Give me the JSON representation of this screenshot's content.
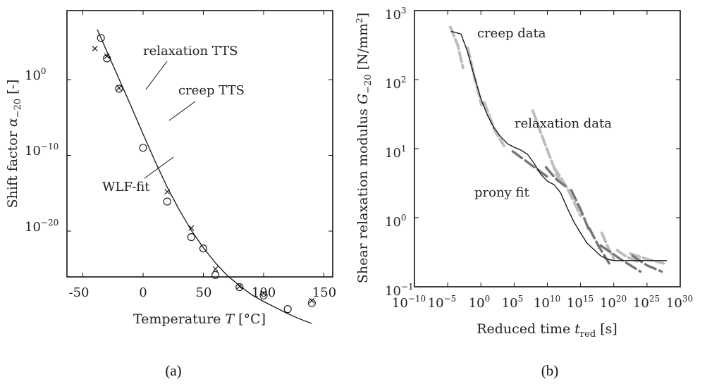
{
  "captions": [
    "(a)",
    "(b)"
  ],
  "chart_data": [
    {
      "type": "scatter",
      "xlabel": "Temperature T [°C]",
      "ylabel": "Shift factor α₋₂₀ [-]",
      "xlim": [
        -60,
        155
      ],
      "ylim_log10": [
        -27.5,
        15.5
      ],
      "y_scale": "log",
      "xticks": [
        -50,
        0,
        50,
        100,
        150
      ],
      "xtick_labels": [
        "-50",
        "0",
        "50",
        "100",
        "150"
      ],
      "yticks_log10": [
        0,
        -10,
        -20
      ],
      "ytick_labels": [
        "10^0",
        "10^-10",
        "10^-20"
      ],
      "series": [
        {
          "name": "relaxation TTS",
          "marker": "circle",
          "x": [
            -35,
            -30,
            -20,
            0,
            20,
            40,
            50,
            60,
            80,
            100,
            120,
            140
          ],
          "y_log10": [
            5.5,
            2.8,
            -1.2,
            -9.0,
            -16.1,
            -20.8,
            -22.3,
            -25.8,
            -27.4,
            -28.5,
            -30.3,
            -29.5
          ]
        },
        {
          "name": "creep TTS",
          "marker": "cross",
          "x": [
            -40,
            -30,
            -20,
            20,
            40,
            60,
            80,
            100,
            140
          ],
          "y_log10": [
            4.1,
            3.1,
            -1.1,
            -14.8,
            -19.6,
            -25.0,
            -27.3,
            -28.2,
            -29.2
          ]
        },
        {
          "name": "WLF-fit",
          "marker": "line",
          "x": [
            -38,
            -30,
            -20,
            -10,
            0,
            10,
            20,
            30,
            40,
            50,
            60,
            70,
            80,
            90,
            100,
            110,
            120,
            130,
            140
          ],
          "y_log10": [
            6.6,
            3.7,
            0.1,
            -3.5,
            -7.2,
            -10.8,
            -14.2,
            -17.2,
            -19.9,
            -22.2,
            -24.2,
            -25.9,
            -27.2,
            -28.4,
            -29.3,
            -30.1,
            -30.9,
            -31.6,
            -32.2
          ]
        }
      ],
      "annotations": [
        "relaxation TTS",
        "creep TTS",
        "WLF-fit"
      ]
    },
    {
      "type": "line",
      "xlabel": "Reduced time t_red [s]",
      "ylabel": "Shear relaxation modulus G₋₂₀ [N/mm²]",
      "x_scale": "log",
      "y_scale": "log",
      "xlim_log10": [
        -10,
        30
      ],
      "ylim_log10": [
        -1,
        3
      ],
      "xticks_log10": [
        -10,
        -5,
        0,
        5,
        10,
        15,
        20,
        25,
        30
      ],
      "xtick_labels": [
        "10^-10",
        "10^-5",
        "10^0",
        "10^5",
        "10^10",
        "10^15",
        "10^20",
        "10^25",
        "10^30"
      ],
      "yticks_log10": [
        -1,
        0,
        1,
        2,
        3
      ],
      "ytick_labels": [
        "10^-1",
        "10^0",
        "10^1",
        "10^2",
        "10^3"
      ],
      "series": [
        {
          "name": "prony fit",
          "color": "#111111",
          "x_log10": [
            -4.5,
            -3,
            -2,
            -1,
            0,
            1,
            2,
            3,
            4,
            5,
            6,
            7,
            8,
            9,
            10,
            11,
            12,
            13,
            14,
            15,
            16,
            17,
            18,
            19,
            20,
            22,
            24,
            26,
            28
          ],
          "y_log10": [
            2.7,
            2.66,
            2.4,
            2.05,
            1.72,
            1.48,
            1.3,
            1.17,
            1.07,
            1.02,
            0.98,
            0.92,
            0.79,
            0.63,
            0.53,
            0.48,
            0.36,
            0.14,
            -0.06,
            -0.22,
            -0.37,
            -0.46,
            -0.55,
            -0.6,
            -0.62,
            -0.62,
            -0.62,
            -0.62,
            -0.62
          ]
        },
        {
          "name": "creep data",
          "color": "#bdbdbd",
          "segments": [
            {
              "x_log10": [
                -4.6,
                -3.5,
                -2.7
              ],
              "y_log10": [
                2.76,
                2.5,
                2.17
              ]
            },
            {
              "x_log10": [
                -2.0,
                -1.0,
                0.1
              ],
              "y_log10": [
                2.46,
                2.05,
                1.63
              ]
            },
            {
              "x_log10": [
                0.5,
                2.0,
                3.5
              ],
              "y_log10": [
                1.67,
                1.28,
                1.04
              ]
            },
            {
              "x_log10": [
                7.8,
                9.8,
                11.8
              ],
              "y_log10": [
                1.55,
                1.03,
                0.53
              ]
            },
            {
              "x_log10": [
                11.0,
                13.0,
                15.0
              ],
              "y_log10": [
                0.73,
                0.43,
                0.03
              ]
            },
            {
              "x_log10": [
                18.2,
                19.1,
                20.0
              ],
              "y_log10": [
                -0.22,
                -0.42,
                -0.6
              ]
            },
            {
              "x_log10": [
                20.5,
                22.0,
                23.5
              ],
              "y_log10": [
                -0.47,
                -0.57,
                -0.63
              ]
            },
            {
              "x_log10": [
                22.5,
                25.0,
                27.5
              ],
              "y_log10": [
                -0.52,
                -0.6,
                -0.66
              ]
            }
          ]
        },
        {
          "name": "relaxation data",
          "color": "#777777",
          "segments": [
            {
              "x_log10": [
                4.8,
                7.5,
                10.2
              ],
              "y_log10": [
                0.96,
                0.77,
                0.58
              ]
            },
            {
              "x_log10": [
                9.8,
                11.3,
                12.8
              ],
              "y_log10": [
                0.73,
                0.56,
                0.45
              ]
            },
            {
              "x_log10": [
                13.6,
                15.0,
                16.2
              ],
              "y_log10": [
                0.4,
                0.12,
                -0.16
              ]
            },
            {
              "x_log10": [
                16.3,
                17.7,
                19.3
              ],
              "y_log10": [
                -0.15,
                -0.41,
                -0.66
              ]
            },
            {
              "x_log10": [
                18.0,
                21.0,
                24.0
              ],
              "y_log10": [
                -0.4,
                -0.6,
                -0.78
              ]
            },
            {
              "x_log10": [
                22.8,
                25.0,
                27.2
              ],
              "y_log10": [
                -0.55,
                -0.69,
                -0.78
              ]
            }
          ]
        }
      ],
      "annotations": [
        "creep data",
        "relaxation data",
        "prony fit"
      ]
    }
  ]
}
